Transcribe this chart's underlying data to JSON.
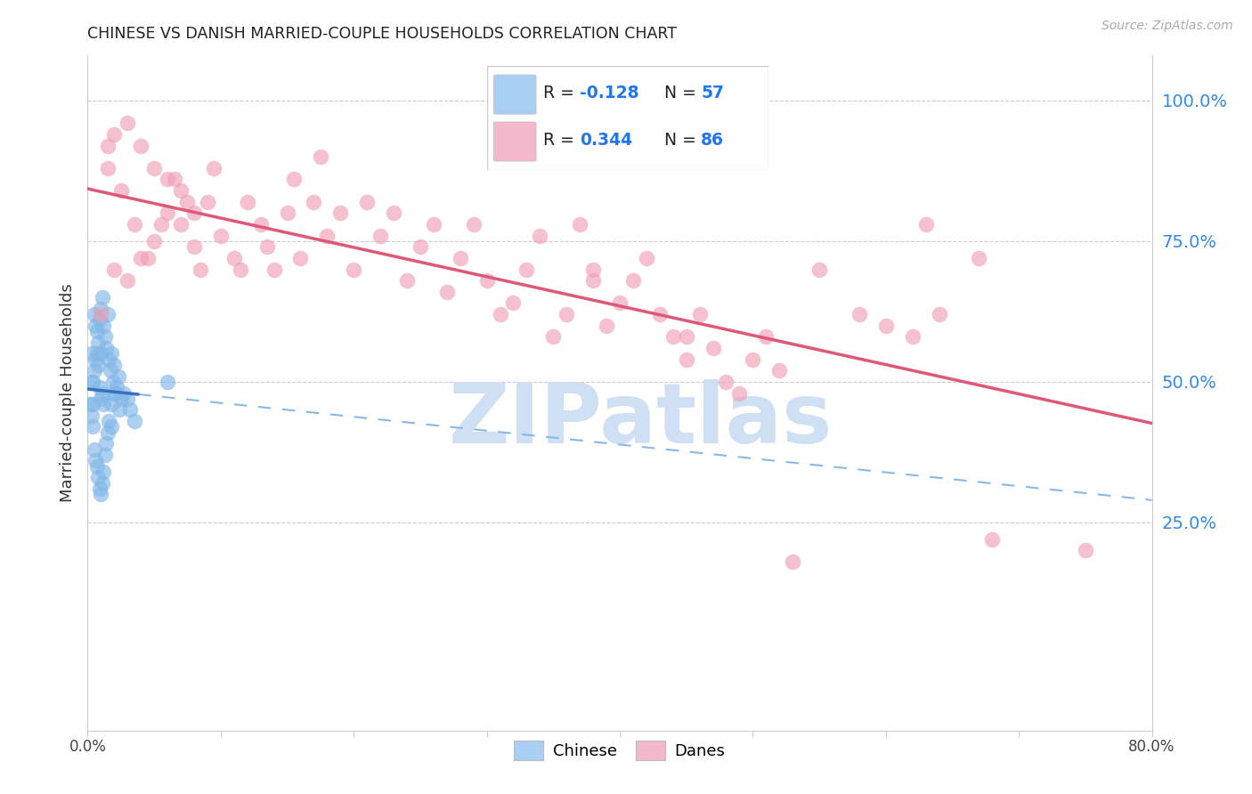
{
  "title": "CHINESE VS DANISH MARRIED-COUPLE HOUSEHOLDS CORRELATION CHART",
  "source": "Source: ZipAtlas.com",
  "ylabel": "Married-couple Households",
  "xlim": [
    0.0,
    80.0
  ],
  "ylim": [
    -12.0,
    108.0
  ],
  "yticks": [
    25.0,
    50.0,
    75.0,
    100.0
  ],
  "ytick_labels": [
    "25.0%",
    "50.0%",
    "75.0%",
    "100.0%"
  ],
  "chinese_color": "#82B8E8",
  "danish_color": "#F0A0B4",
  "chinese_line_color": "#3870C0",
  "danish_line_color": "#E05878",
  "dashed_line_color": "#88B8E8",
  "legend_chinese_color": "#A8D0F4",
  "legend_danish_color": "#F4B8CC",
  "watermark_color": "#D0E0F4",
  "chinese_points_x": [
    0.2,
    0.3,
    0.4,
    0.5,
    0.5,
    0.6,
    0.6,
    0.7,
    0.7,
    0.8,
    0.8,
    0.9,
    0.9,
    1.0,
    1.0,
    1.0,
    1.1,
    1.1,
    1.2,
    1.2,
    1.3,
    1.3,
    1.4,
    1.4,
    1.5,
    1.5,
    1.6,
    1.6,
    1.7,
    1.8,
    1.8,
    1.9,
    2.0,
    2.0,
    2.1,
    2.2,
    2.3,
    2.4,
    2.5,
    2.7,
    3.0,
    3.2,
    3.5,
    0.3,
    0.4,
    0.5,
    0.6,
    0.7,
    0.8,
    0.9,
    1.0,
    1.1,
    1.2,
    6.0,
    1.8,
    0.3,
    0.4
  ],
  "chinese_points_y": [
    46,
    55,
    50,
    62,
    38,
    60,
    36,
    59,
    35,
    57,
    33,
    61,
    31,
    63,
    55,
    30,
    65,
    32,
    60,
    34,
    58,
    37,
    56,
    39,
    62,
    41,
    54,
    43,
    52,
    55,
    46,
    50,
    53,
    48,
    48,
    49,
    51,
    45,
    47,
    48,
    47,
    45,
    43,
    50,
    46,
    52,
    54,
    55,
    53,
    49,
    47,
    48,
    46,
    50,
    42,
    44,
    42
  ],
  "danish_points_x": [
    1.0,
    2.0,
    3.0,
    4.0,
    5.0,
    6.0,
    7.0,
    8.0,
    9.0,
    10.0,
    11.0,
    12.0,
    13.0,
    14.0,
    15.0,
    16.0,
    17.0,
    18.0,
    19.0,
    20.0,
    21.0,
    22.0,
    23.0,
    24.0,
    25.0,
    26.0,
    27.0,
    28.0,
    29.0,
    30.0,
    31.0,
    32.0,
    33.0,
    34.0,
    35.0,
    36.0,
    37.0,
    38.0,
    39.0,
    40.0,
    41.0,
    42.0,
    43.0,
    44.0,
    45.0,
    46.0,
    47.0,
    48.0,
    49.0,
    50.0,
    51.0,
    52.0,
    5.5,
    6.5,
    8.5,
    1.5,
    2.5,
    3.5,
    4.5,
    7.5,
    9.5,
    11.5,
    13.5,
    15.5,
    17.5,
    2.0,
    3.0,
    4.0,
    5.0,
    6.0,
    7.0,
    8.0,
    1.5,
    38.0,
    45.0,
    63.0,
    67.0,
    75.0,
    55.0,
    58.0,
    53.0,
    60.0,
    62.0,
    64.0,
    68.0
  ],
  "danish_points_y": [
    62,
    70,
    68,
    72,
    75,
    80,
    78,
    74,
    82,
    76,
    72,
    82,
    78,
    70,
    80,
    72,
    82,
    76,
    80,
    70,
    82,
    76,
    80,
    68,
    74,
    78,
    66,
    72,
    78,
    68,
    62,
    64,
    70,
    76,
    58,
    62,
    78,
    68,
    60,
    64,
    68,
    72,
    62,
    58,
    54,
    62,
    56,
    50,
    48,
    54,
    58,
    52,
    78,
    86,
    70,
    88,
    84,
    78,
    72,
    82,
    88,
    70,
    74,
    86,
    90,
    94,
    96,
    92,
    88,
    86,
    84,
    80,
    92,
    70,
    58,
    78,
    72,
    20,
    70,
    62,
    18,
    60,
    58,
    62,
    22
  ]
}
